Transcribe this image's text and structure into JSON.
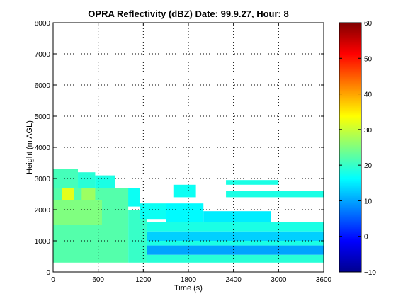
{
  "chart_data": {
    "type": "heatmap",
    "title": "OPRA Reflectivity (dBZ)  Date: 99.9.27, Hour: 8",
    "xlabel": "Time (s)",
    "ylabel": "Height (m AGL)",
    "xlim": [
      0,
      3600
    ],
    "ylim": [
      0,
      8000
    ],
    "xticks": [
      0,
      600,
      1200,
      1800,
      2400,
      3000,
      3600
    ],
    "yticks": [
      0,
      1000,
      2000,
      3000,
      4000,
      5000,
      6000,
      7000,
      8000
    ],
    "grid": true,
    "colormap": "jet",
    "colorbar": {
      "min": -10,
      "max": 60,
      "ticks": [
        -10,
        0,
        10,
        20,
        30,
        40,
        50,
        60
      ]
    },
    "regions": [
      {
        "x": [
          0,
          330
        ],
        "y": [
          2700,
          3300
        ],
        "value": 21
      },
      {
        "x": [
          330,
          560
        ],
        "y": [
          2700,
          3200
        ],
        "value": 19
      },
      {
        "x": [
          560,
          820
        ],
        "y": [
          2600,
          3100
        ],
        "value": 18
      },
      {
        "x": [
          820,
          1150
        ],
        "y": [
          2100,
          2700
        ],
        "value": 17
      },
      {
        "x": [
          0,
          1000
        ],
        "y": [
          300,
          2700
        ],
        "value": 22
      },
      {
        "x": [
          1000,
          1250
        ],
        "y": [
          300,
          2000
        ],
        "value": 20
      },
      {
        "x": [
          120,
          280
        ],
        "y": [
          2300,
          2700
        ],
        "value": 32
      },
      {
        "x": [
          380,
          560
        ],
        "y": [
          2300,
          2700
        ],
        "value": 27
      },
      {
        "x": [
          0,
          650
        ],
        "y": [
          1500,
          2300
        ],
        "value": 25
      },
      {
        "x": [
          1150,
          1500
        ],
        "y": [
          1700,
          2200
        ],
        "value": 17
      },
      {
        "x": [
          1250,
          3600
        ],
        "y": [
          1300,
          1600
        ],
        "value": 18
      },
      {
        "x": [
          1250,
          3600
        ],
        "y": [
          1000,
          1300
        ],
        "value": 13
      },
      {
        "x": [
          1250,
          3600
        ],
        "y": [
          850,
          1000
        ],
        "value": 18
      },
      {
        "x": [
          1250,
          3600
        ],
        "y": [
          550,
          850
        ],
        "value": 10
      },
      {
        "x": [
          1250,
          3600
        ],
        "y": [
          300,
          550
        ],
        "value": 19
      },
      {
        "x": [
          1500,
          2000
        ],
        "y": [
          1600,
          2200
        ],
        "value": 16
      },
      {
        "x": [
          2000,
          2900
        ],
        "y": [
          1600,
          1950
        ],
        "value": 15
      },
      {
        "x": [
          1600,
          1900
        ],
        "y": [
          2400,
          2800
        ],
        "value": 17
      },
      {
        "x": [
          2300,
          3600
        ],
        "y": [
          2400,
          2600
        ],
        "value": 18
      },
      {
        "x": [
          2300,
          3000
        ],
        "y": [
          2800,
          2950
        ],
        "value": 18
      }
    ]
  }
}
